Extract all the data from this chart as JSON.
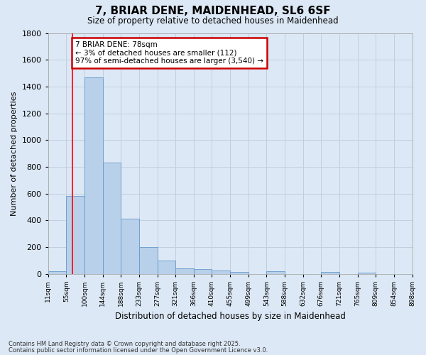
{
  "title": "7, BRIAR DENE, MAIDENHEAD, SL6 6SF",
  "subtitle": "Size of property relative to detached houses in Maidenhead",
  "xlabel": "Distribution of detached houses by size in Maidenhead",
  "ylabel": "Number of detached properties",
  "footer_line1": "Contains HM Land Registry data © Crown copyright and database right 2025.",
  "footer_line2": "Contains public sector information licensed under the Open Government Licence v3.0.",
  "bar_values": [
    20,
    585,
    1470,
    830,
    415,
    200,
    100,
    40,
    35,
    25,
    15,
    0,
    20,
    0,
    0,
    15,
    0,
    10,
    0,
    0
  ],
  "bin_labels": [
    "11sqm",
    "55sqm",
    "100sqm",
    "144sqm",
    "188sqm",
    "233sqm",
    "277sqm",
    "321sqm",
    "366sqm",
    "410sqm",
    "455sqm",
    "499sqm",
    "543sqm",
    "588sqm",
    "632sqm",
    "676sqm",
    "721sqm",
    "765sqm",
    "809sqm",
    "854sqm",
    "898sqm"
  ],
  "bar_color": "#b8d0ea",
  "bar_edge_color": "#6699cc",
  "bg_color": "#dce8f5",
  "grid_color": "#c0cfe0",
  "red_line_x": 1.35,
  "annotation_text": "7 BRIAR DENE: 78sqm\n← 3% of detached houses are smaller (112)\n97% of semi-detached houses are larger (3,540) →",
  "annotation_box_color": "#ffffff",
  "annotation_border_color": "#cc0000",
  "ylim": [
    0,
    1800
  ],
  "yticks": [
    0,
    200,
    400,
    600,
    800,
    1000,
    1200,
    1400,
    1600,
    1800
  ]
}
